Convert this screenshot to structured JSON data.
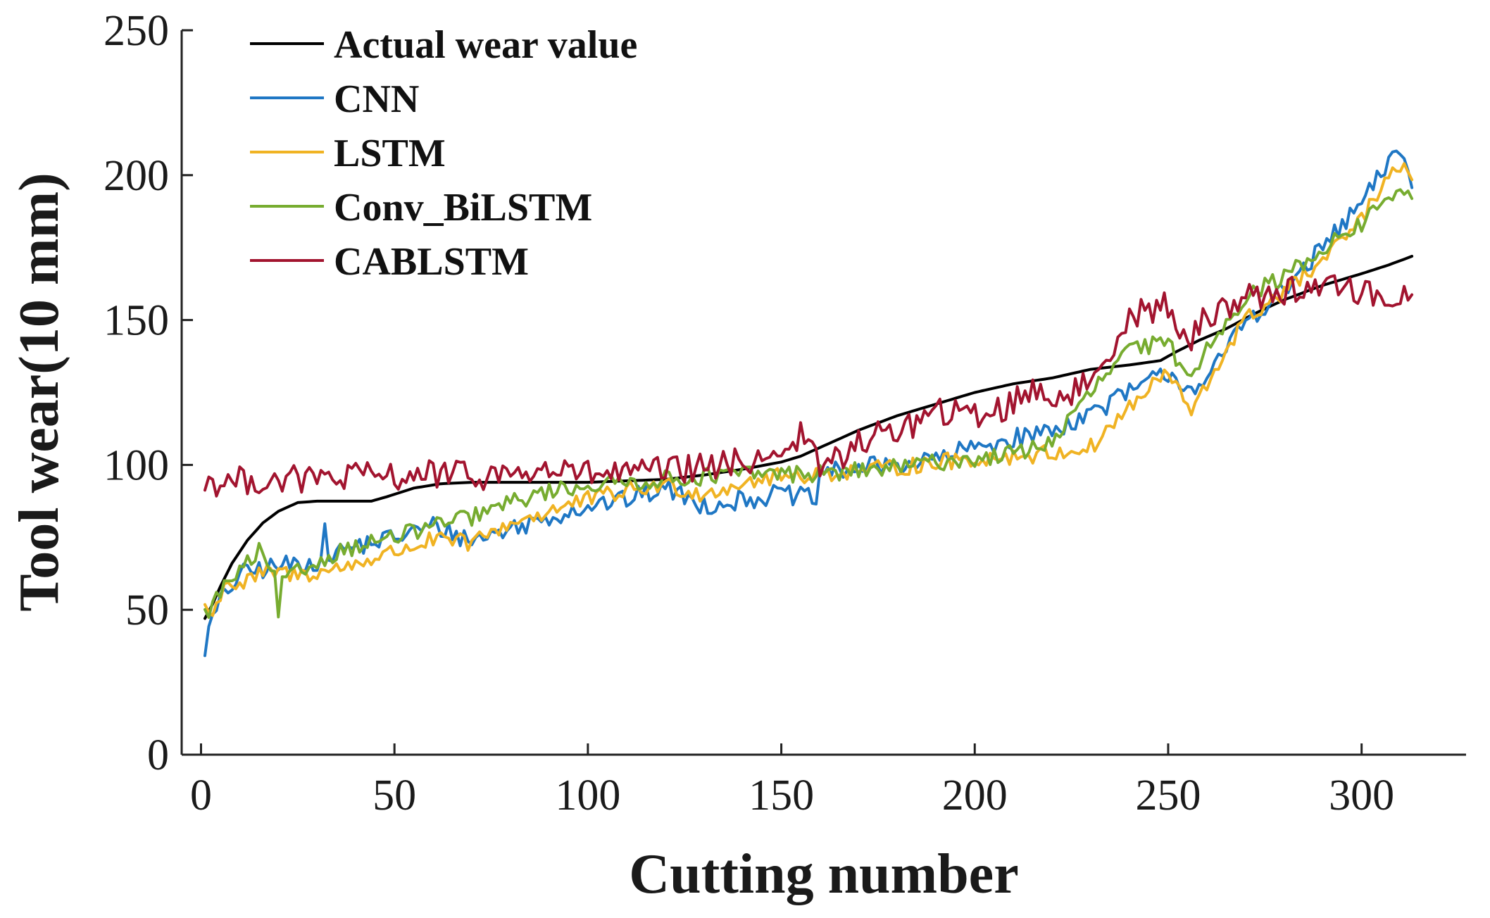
{
  "chart_data": {
    "type": "line",
    "title": "",
    "xlabel": "Cutting number",
    "ylabel": "Tool wear(10  mm)",
    "xlim": [
      -5,
      327
    ],
    "ylim": [
      0,
      250
    ],
    "xticks": [
      0,
      50,
      100,
      150,
      200,
      250,
      300
    ],
    "yticks": [
      0,
      50,
      100,
      150,
      200,
      250
    ],
    "grid": false,
    "legend_position": "top-left",
    "series": [
      {
        "name": "Actual wear value",
        "color": "#000000",
        "points": [
          [
            1,
            47
          ],
          [
            3,
            52
          ],
          [
            5,
            58
          ],
          [
            8,
            66
          ],
          [
            12,
            74
          ],
          [
            16,
            80
          ],
          [
            20,
            84
          ],
          [
            25,
            87
          ],
          [
            30,
            87.5
          ],
          [
            35,
            87.5
          ],
          [
            40,
            87.5
          ],
          [
            44,
            87.5
          ],
          [
            48,
            89
          ],
          [
            55,
            92
          ],
          [
            62,
            93.5
          ],
          [
            70,
            94
          ],
          [
            80,
            94
          ],
          [
            90,
            94
          ],
          [
            100,
            94
          ],
          [
            110,
            94.5
          ],
          [
            120,
            95
          ],
          [
            130,
            96.5
          ],
          [
            140,
            98.5
          ],
          [
            150,
            101
          ],
          [
            155,
            103
          ],
          [
            160,
            106
          ],
          [
            165,
            109
          ],
          [
            170,
            112
          ],
          [
            180,
            117
          ],
          [
            190,
            121
          ],
          [
            200,
            125
          ],
          [
            210,
            128
          ],
          [
            220,
            130
          ],
          [
            230,
            133
          ],
          [
            240,
            134.5
          ],
          [
            248,
            136
          ],
          [
            252,
            139
          ],
          [
            258,
            143
          ],
          [
            265,
            147
          ],
          [
            272,
            152
          ],
          [
            280,
            157
          ],
          [
            290,
            162
          ],
          [
            300,
            166
          ],
          [
            307,
            169
          ],
          [
            313,
            172
          ]
        ]
      },
      {
        "name": "CNN",
        "color": "#1f77c4",
        "noise": 3.5,
        "spikes": [
          [
            32,
            8
          ]
        ],
        "points": [
          [
            1,
            37
          ],
          [
            3,
            47
          ],
          [
            6,
            55
          ],
          [
            10,
            62
          ],
          [
            15,
            64
          ],
          [
            20,
            65
          ],
          [
            25,
            66
          ],
          [
            30,
            67
          ],
          [
            35,
            70
          ],
          [
            40,
            72
          ],
          [
            50,
            75
          ],
          [
            60,
            79
          ],
          [
            70,
            74
          ],
          [
            80,
            78
          ],
          [
            90,
            82
          ],
          [
            100,
            86
          ],
          [
            110,
            88
          ],
          [
            120,
            92
          ],
          [
            130,
            86
          ],
          [
            140,
            88
          ],
          [
            150,
            90
          ],
          [
            159,
            88
          ],
          [
            160,
            97
          ],
          [
            170,
            99
          ],
          [
            180,
            100
          ],
          [
            190,
            102
          ],
          [
            200,
            106
          ],
          [
            210,
            109
          ],
          [
            220,
            112
          ],
          [
            230,
            118
          ],
          [
            240,
            125
          ],
          [
            250,
            132
          ],
          [
            255,
            127
          ],
          [
            260,
            128
          ],
          [
            265,
            140
          ],
          [
            270,
            150
          ],
          [
            280,
            160
          ],
          [
            290,
            175
          ],
          [
            300,
            190
          ],
          [
            305,
            200
          ],
          [
            310,
            210
          ],
          [
            313,
            197
          ]
        ]
      },
      {
        "name": "LSTM",
        "color": "#f0b323",
        "noise": 3,
        "points": [
          [
            1,
            52
          ],
          [
            3,
            47
          ],
          [
            6,
            60
          ],
          [
            10,
            58
          ],
          [
            15,
            62
          ],
          [
            20,
            63
          ],
          [
            25,
            62
          ],
          [
            30,
            63
          ],
          [
            35,
            64
          ],
          [
            40,
            66
          ],
          [
            50,
            70
          ],
          [
            60,
            74
          ],
          [
            70,
            73
          ],
          [
            80,
            80
          ],
          [
            90,
            84
          ],
          [
            100,
            88
          ],
          [
            110,
            91
          ],
          [
            120,
            93
          ],
          [
            130,
            90
          ],
          [
            140,
            94
          ],
          [
            150,
            96
          ],
          [
            160,
            97
          ],
          [
            170,
            98
          ],
          [
            180,
            99
          ],
          [
            190,
            101
          ],
          [
            200,
            102
          ],
          [
            210,
            103
          ],
          [
            220,
            104
          ],
          [
            230,
            106
          ],
          [
            240,
            120
          ],
          [
            250,
            132
          ],
          [
            256,
            118
          ],
          [
            260,
            127
          ],
          [
            265,
            140
          ],
          [
            270,
            150
          ],
          [
            280,
            160
          ],
          [
            290,
            170
          ],
          [
            300,
            185
          ],
          [
            305,
            195
          ],
          [
            310,
            203
          ],
          [
            313,
            198
          ]
        ]
      },
      {
        "name": "Conv_BiLSTM",
        "color": "#77ac30",
        "noise": 3,
        "spikes": [
          [
            20,
            -8
          ]
        ],
        "points": [
          [
            1,
            48
          ],
          [
            3,
            52
          ],
          [
            6,
            58
          ],
          [
            10,
            63
          ],
          [
            15,
            70
          ],
          [
            20,
            58
          ],
          [
            25,
            63
          ],
          [
            30,
            66
          ],
          [
            35,
            70
          ],
          [
            40,
            72
          ],
          [
            50,
            75
          ],
          [
            60,
            79
          ],
          [
            70,
            82
          ],
          [
            80,
            87
          ],
          [
            90,
            91
          ],
          [
            100,
            93
          ],
          [
            110,
            94
          ],
          [
            120,
            95
          ],
          [
            130,
            96
          ],
          [
            140,
            97
          ],
          [
            150,
            97
          ],
          [
            160,
            97
          ],
          [
            170,
            98
          ],
          [
            180,
            99
          ],
          [
            190,
            101
          ],
          [
            200,
            102
          ],
          [
            210,
            104
          ],
          [
            220,
            108
          ],
          [
            230,
            125
          ],
          [
            240,
            140
          ],
          [
            250,
            142
          ],
          [
            255,
            130
          ],
          [
            260,
            140
          ],
          [
            265,
            150
          ],
          [
            270,
            158
          ],
          [
            280,
            165
          ],
          [
            290,
            175
          ],
          [
            300,
            183
          ],
          [
            305,
            190
          ],
          [
            310,
            196
          ],
          [
            313,
            190
          ]
        ]
      },
      {
        "name": "CABLSTM",
        "color": "#a2142f",
        "noise": 5,
        "points": [
          [
            1,
            94
          ],
          [
            10,
            94.5
          ],
          [
            20,
            95
          ],
          [
            30,
            95
          ],
          [
            40,
            96
          ],
          [
            50,
            96
          ],
          [
            60,
            97
          ],
          [
            70,
            96
          ],
          [
            80,
            97
          ],
          [
            90,
            98
          ],
          [
            100,
            97
          ],
          [
            110,
            97
          ],
          [
            120,
            98
          ],
          [
            130,
            99
          ],
          [
            140,
            101
          ],
          [
            150,
            105
          ],
          [
            155,
            110
          ],
          [
            160,
            100
          ],
          [
            165,
            102
          ],
          [
            170,
            108
          ],
          [
            180,
            112
          ],
          [
            190,
            118
          ],
          [
            200,
            117
          ],
          [
            210,
            121
          ],
          [
            215,
            127
          ],
          [
            220,
            123
          ],
          [
            225,
            125
          ],
          [
            230,
            128
          ],
          [
            235,
            140
          ],
          [
            240,
            152
          ],
          [
            250,
            155
          ],
          [
            255,
            140
          ],
          [
            260,
            152
          ],
          [
            270,
            158
          ],
          [
            280,
            160
          ],
          [
            290,
            162
          ],
          [
            300,
            160
          ],
          [
            305,
            158
          ],
          [
            310,
            156
          ],
          [
            313,
            163
          ]
        ]
      }
    ]
  }
}
